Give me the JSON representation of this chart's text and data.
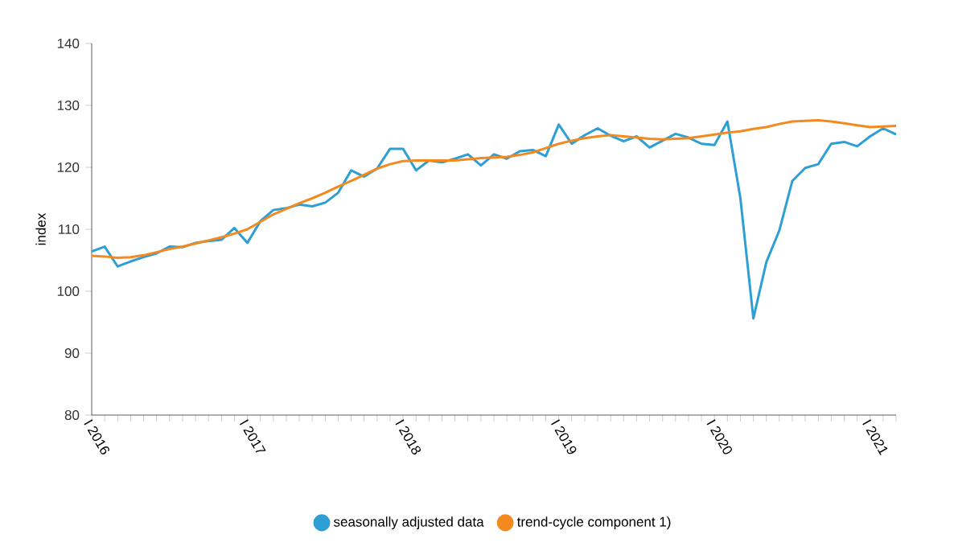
{
  "chart_data": {
    "type": "line",
    "ylabel": "index",
    "categories": [
      "I 2016",
      null,
      null,
      null,
      null,
      null,
      null,
      null,
      null,
      null,
      null,
      null,
      "I 2017",
      null,
      null,
      null,
      null,
      null,
      null,
      null,
      null,
      null,
      null,
      null,
      "I 2018",
      null,
      null,
      null,
      null,
      null,
      null,
      null,
      null,
      null,
      null,
      null,
      "I 2019",
      null,
      null,
      null,
      null,
      null,
      null,
      null,
      null,
      null,
      null,
      null,
      "I 2020",
      null,
      null,
      null,
      null,
      null,
      null,
      null,
      null,
      null,
      null,
      null,
      "I 2021",
      null,
      null
    ],
    "series": [
      {
        "name": "seasonally adjusted data",
        "color": "#2e9fd4",
        "values": [
          106.4,
          107.2,
          104.0,
          104.8,
          105.5,
          106.1,
          107.2,
          107.1,
          107.8,
          108.1,
          108.3,
          110.2,
          107.8,
          111.3,
          113.1,
          113.4,
          114.0,
          113.7,
          114.3,
          115.9,
          119.5,
          118.5,
          119.8,
          123.0,
          123.0,
          119.5,
          121.1,
          120.8,
          121.4,
          122.1,
          120.3,
          122.1,
          121.4,
          122.6,
          122.8,
          121.8,
          126.9,
          123.8,
          125.2,
          126.3,
          125.1,
          124.2,
          125.0,
          123.2,
          124.3,
          125.4,
          124.8,
          123.8,
          123.6,
          127.4,
          115.0,
          95.6,
          104.7,
          109.8,
          117.8,
          119.9,
          120.5,
          123.8,
          124.1,
          123.4,
          125.0,
          126.3,
          125.3
        ]
      },
      {
        "name": "trend-cycle component 1)",
        "color": "#f28a1f",
        "values": [
          105.7,
          105.6,
          105.4,
          105.5,
          105.8,
          106.3,
          106.8,
          107.2,
          107.7,
          108.2,
          108.7,
          109.3,
          110.0,
          111.2,
          112.4,
          113.3,
          114.2,
          115.0,
          115.9,
          116.9,
          117.8,
          118.8,
          119.8,
          120.5,
          121.0,
          121.1,
          121.1,
          121.1,
          121.1,
          121.3,
          121.5,
          121.6,
          121.7,
          122.0,
          122.4,
          123.1,
          123.8,
          124.3,
          124.7,
          125.0,
          125.2,
          125.0,
          124.8,
          124.6,
          124.5,
          124.6,
          124.7,
          125.0,
          125.3,
          125.6,
          125.8,
          126.2,
          126.5,
          127.0,
          127.4,
          127.5,
          127.6,
          127.4,
          127.1,
          126.8,
          126.5,
          126.6,
          126.7
        ]
      }
    ],
    "ylim": [
      80,
      140
    ],
    "yticks": [
      80,
      90,
      100,
      110,
      120,
      130,
      140
    ],
    "legend": "bottom"
  }
}
